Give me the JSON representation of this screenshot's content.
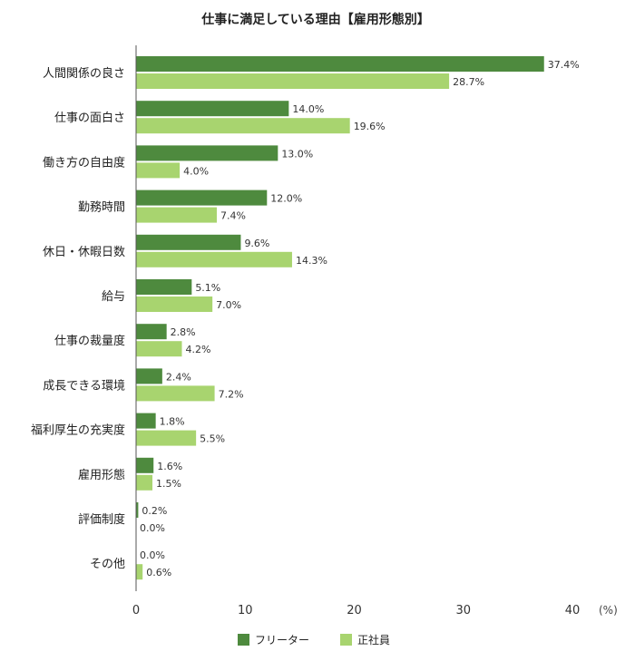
{
  "chart_data": {
    "type": "bar",
    "orientation": "horizontal",
    "title": "仕事に満足している理由【雇用形態別】",
    "categories": [
      "人間関係の良さ",
      "仕事の面白さ",
      "働き方の自由度",
      "勤務時間",
      "休日・休暇日数",
      "給与",
      "仕事の裁量度",
      "成長できる環境",
      "福利厚生の充実度",
      "雇用形態",
      "評価制度",
      "その他"
    ],
    "series": [
      {
        "name": "フリーター",
        "color": "#4e8a3e",
        "values": [
          37.4,
          14.0,
          13.0,
          12.0,
          9.6,
          5.1,
          2.8,
          2.4,
          1.8,
          1.6,
          0.2,
          0.0
        ],
        "labels": [
          "37.4%",
          "14.0%",
          "13.0%",
          "12.0%",
          "9.6%",
          "5.1%",
          "2.8%",
          "2.4%",
          "1.8%",
          "1.6%",
          "0.2%",
          "0.0%"
        ]
      },
      {
        "name": "正社員",
        "color": "#a8d46f",
        "values": [
          28.7,
          19.6,
          4.0,
          7.4,
          14.3,
          7.0,
          4.2,
          7.2,
          5.5,
          1.5,
          0.0,
          0.6
        ],
        "labels": [
          "28.7%",
          "19.6%",
          "4.0%",
          "7.4%",
          "14.3%",
          "7.0%",
          "4.2%",
          "7.2%",
          "5.5%",
          "1.5%",
          "0.0%",
          "0.6%"
        ]
      }
    ],
    "x_ticks": [
      "0",
      "10",
      "20",
      "30",
      "40"
    ],
    "x_tick_values": [
      0,
      10,
      20,
      30,
      40
    ],
    "x_unit": "(%)",
    "xlim": [
      0,
      40
    ],
    "grid": false,
    "legend_position": "bottom"
  }
}
